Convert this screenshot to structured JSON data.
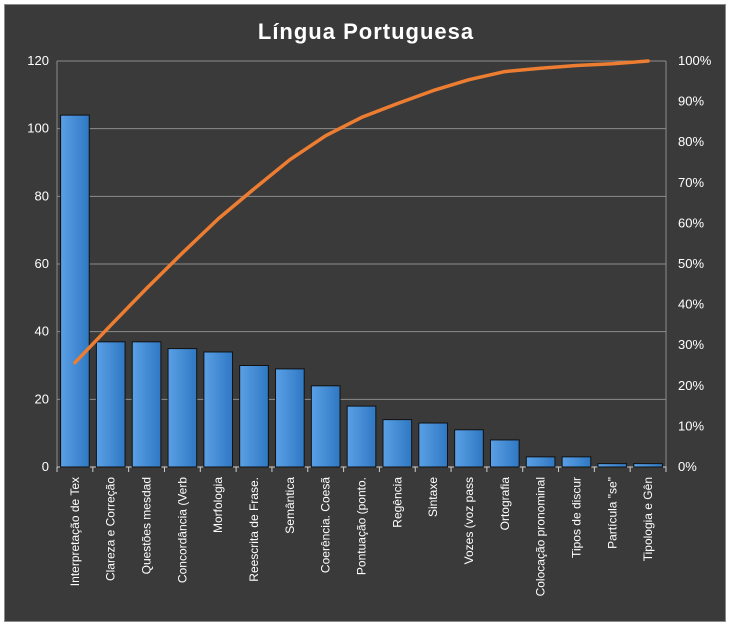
{
  "chart_data": {
    "type": "bar",
    "title": "Língua Portuguesa",
    "categories": [
      "Interpretação de Tex",
      "Clareza e Correção",
      "Questões mesdad",
      "Concordância (Verb",
      "Morfologia",
      "Reescrita de Frase.",
      "Semântica",
      "Coerência. Coesã",
      "Pontuação (ponto.",
      "Regência",
      "Sintaxe",
      "Vozes (voz pass",
      "Ortografia",
      "Colocação pronominal",
      "Tipos de discur",
      "Partícula \"se\"",
      "Tipologia e Gên"
    ],
    "series": [
      {
        "type": "bar",
        "axis": "left",
        "values": [
          104,
          37,
          37,
          35,
          34,
          30,
          29,
          24,
          18,
          14,
          13,
          11,
          8,
          3,
          3,
          1,
          1
        ],
        "color": "#4a90d9"
      },
      {
        "type": "line",
        "axis": "right",
        "values": [
          25.7,
          34.9,
          44.0,
          52.7,
          61.1,
          68.5,
          75.7,
          81.6,
          86.1,
          89.5,
          92.7,
          95.4,
          97.4,
          98.2,
          98.9,
          99.3,
          100.0
        ],
        "color": "#ed7d31"
      }
    ],
    "y_left": {
      "ylim": [
        0,
        120
      ],
      "ticks": [
        "0",
        "20",
        "40",
        "60",
        "80",
        "100",
        "120"
      ]
    },
    "y_right": {
      "ylim": [
        0,
        100
      ],
      "ticks": [
        "0%",
        "10%",
        "20%",
        "30%",
        "40%",
        "50%",
        "60%",
        "70%",
        "80%",
        "90%",
        "100%"
      ]
    },
    "grid": true,
    "background": "#3a3a3a"
  }
}
